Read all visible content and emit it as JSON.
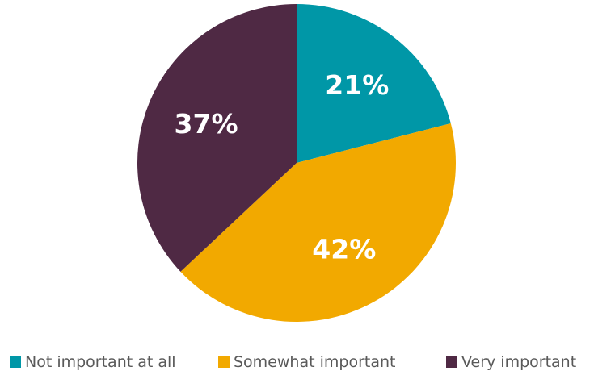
{
  "chart_data": {
    "type": "pie",
    "title": "",
    "slices": [
      {
        "label": "Not important at all",
        "value": 21,
        "display": "21%",
        "color": "#0097a7"
      },
      {
        "label": "Somewhat important",
        "value": 42,
        "display": "42%",
        "color": "#f2a900"
      },
      {
        "label": "Very important",
        "value": 37,
        "display": "37%",
        "color": "#4f2944"
      }
    ],
    "start_angle": "12 o'clock",
    "direction": "clockwise",
    "legend": "bottom",
    "data_labels": "inside"
  }
}
